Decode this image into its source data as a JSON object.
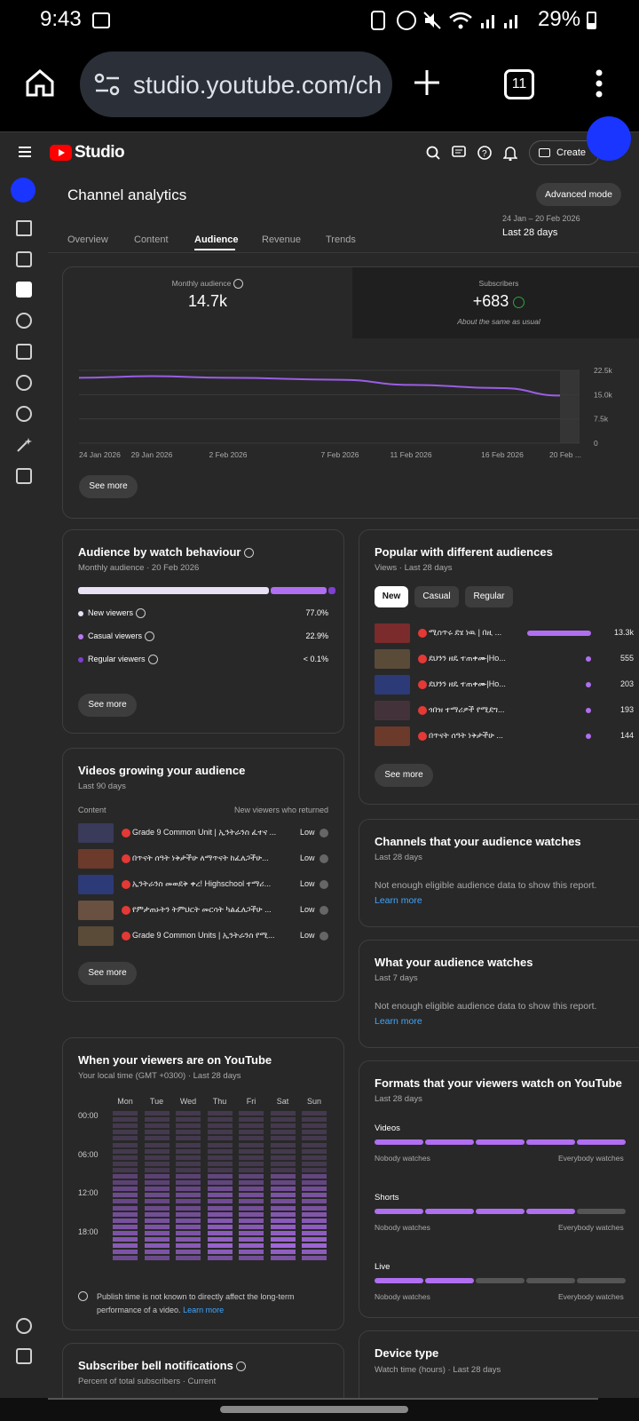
{
  "status": {
    "time": "9:43",
    "battery": "29%"
  },
  "browser": {
    "url": "studio.youtube.com/ch",
    "tabs": "11"
  },
  "header": {
    "logo": "Studio",
    "create": "Create"
  },
  "page": {
    "title": "Channel analytics",
    "advanced": "Advanced mode",
    "tabs": [
      "Overview",
      "Content",
      "Audience",
      "Revenue",
      "Trends"
    ],
    "date_range": "24 Jan – 20 Feb 2026",
    "period": "Last 28 days"
  },
  "summary": {
    "monthly_label": "Monthly audience",
    "monthly_value": "14.7k",
    "subs_label": "Subscribers",
    "subs_value": "+683",
    "subs_note": "About the same as usual",
    "see_more": "See more"
  },
  "chart_data": {
    "type": "line",
    "x": [
      "24 Jan 2026",
      "29 Jan 2026",
      "2 Feb 2026",
      "7 Feb 2026",
      "11 Feb 2026",
      "16 Feb 2026",
      "20 Feb ..."
    ],
    "yticks": [
      "22.5k",
      "15.0k",
      "7.5k",
      "0"
    ],
    "ylim": [
      0,
      22500
    ],
    "series": [
      {
        "values": [
          20200,
          20700,
          20200,
          19600,
          18000,
          17000,
          14700
        ]
      }
    ],
    "color": "#9b5de5"
  },
  "behaviour": {
    "title": "Audience by watch behaviour",
    "sub": "Monthly audience · 20 Feb 2026",
    "rows": [
      {
        "label": "New viewers",
        "value": "77.0%",
        "share": 0.77,
        "color": "#e8e0f5"
      },
      {
        "label": "Casual viewers",
        "value": "22.9%",
        "share": 0.229,
        "color": "#b06ef0"
      },
      {
        "label": "Regular viewers",
        "value": "< 0.1%",
        "share": 0.001,
        "color": "#7f3fd1"
      }
    ],
    "see_more": "See more"
  },
  "popular": {
    "title": "Popular with different audiences",
    "sub": "Views · Last 28 days",
    "chips": [
      "New",
      "Casual",
      "Regular"
    ],
    "rows": [
      {
        "title": "ሚስጥሩ ደሄ ነዉ | በዚ ...",
        "value": "13.3k",
        "share": 1.0
      },
      {
        "title": "ደህንን ዘዴ ተጠቀሙ|Ho...",
        "value": "555",
        "share": 0.04
      },
      {
        "title": "ደህንን ዘዴ ተጠቀሙ|Ho...",
        "value": "203",
        "share": 0.015
      },
      {
        "title": "ጎበዝ ተማሪዎች የሚደግ...",
        "value": "193",
        "share": 0.015
      },
      {
        "title": "በጥናት ሰዓት ነቅታችሁ ...",
        "value": "144",
        "share": 0.011
      }
    ],
    "see_more": "See more"
  },
  "growing": {
    "title": "Videos growing your audience",
    "sub": "Last 90 days",
    "col_content": "Content",
    "col_metric": "New viewers who returned",
    "rows": [
      {
        "title": "Grade 9 Common Unit | ኢንትራንስ ፈተና ...",
        "value": "Low"
      },
      {
        "title": "በጥናት ሰዓት ነቅታችሁ ለማጥናት ከፈለጋችሁ...",
        "value": "Low"
      },
      {
        "title": "ኢንትራንስ መወደቅ ቀረ! Highschool ተማሪ...",
        "value": "Low"
      },
      {
        "title": "የምታጠኑትን ትምህርት መርሳት ካልፈለጋችሁ ...",
        "value": "Low"
      },
      {
        "title": "Grade 9 Common Units | ኢንትራንስ የሚ...",
        "value": "Low"
      }
    ],
    "see_more": "See more"
  },
  "channels": {
    "title": "Channels that your audience watches",
    "sub": "Last 28 days",
    "msg": "Not enough eligible audience data to show this report.",
    "link": "Learn more"
  },
  "watches": {
    "title": "What your audience watches",
    "sub": "Last 7 days",
    "msg": "Not enough eligible audience data to show this report.",
    "link": "Learn more"
  },
  "when": {
    "title": "When your viewers are on YouTube",
    "sub": "Your local time (GMT +0300) · Last 28 days",
    "days": [
      "Mon",
      "Tue",
      "Wed",
      "Thu",
      "Fri",
      "Sat",
      "Sun"
    ],
    "hours": [
      "00:00",
      "06:00",
      "12:00",
      "18:00"
    ],
    "note": "Publish time is not known to directly affect the long-term performance of a video.",
    "link": "Learn more"
  },
  "formats": {
    "title": "Formats that your viewers watch on YouTube",
    "sub": "Last 28 days",
    "low": "Nobody watches",
    "high": "Everybody watches",
    "rows": [
      {
        "label": "Videos",
        "level": 5
      },
      {
        "label": "Shorts",
        "level": 4
      },
      {
        "label": "Live",
        "level": 2
      }
    ]
  },
  "bell": {
    "title": "Subscriber bell notifications",
    "sub": "Percent of total subscribers · Current"
  },
  "device": {
    "title": "Device type",
    "sub": "Watch time (hours) · Last 28 days"
  },
  "colors": {
    "accent": "#9b5de5",
    "link": "#3ea6ff",
    "bg": "#282828"
  }
}
